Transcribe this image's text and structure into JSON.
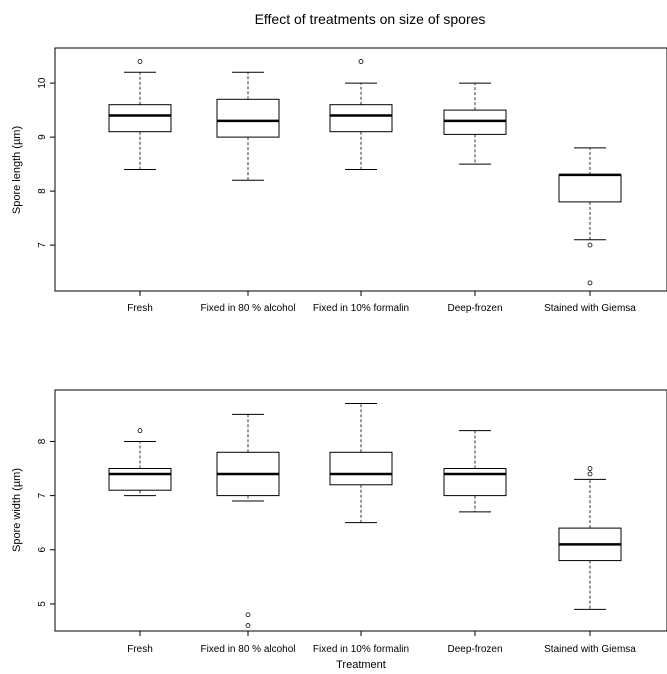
{
  "figure_title": "Effect of treatments on size of spores",
  "chart_data": [
    {
      "type": "box",
      "title": "Effect of treatments on size of spores",
      "xlabel": "",
      "ylabel": "Spore length (µm)",
      "ylim": [
        6.15,
        10.65
      ],
      "yticks": [
        7,
        8,
        9,
        10
      ],
      "grid": false,
      "categories": [
        "Fresh",
        "Fixed in 80 % alcohol",
        "Fixed in 10% formalin",
        "Deep-frozen",
        "Stained with Giemsa"
      ],
      "boxes": [
        {
          "whisker_low": 8.4,
          "q1": 9.1,
          "median": 9.4,
          "q3": 9.6,
          "whisker_high": 10.2,
          "outliers": [
            10.4
          ]
        },
        {
          "whisker_low": 8.2,
          "q1": 9.0,
          "median": 9.3,
          "q3": 9.7,
          "whisker_high": 10.2,
          "outliers": []
        },
        {
          "whisker_low": 8.4,
          "q1": 9.1,
          "median": 9.4,
          "q3": 9.6,
          "whisker_high": 10.0,
          "outliers": [
            10.4
          ]
        },
        {
          "whisker_low": 8.5,
          "q1": 9.05,
          "median": 9.3,
          "q3": 9.5,
          "whisker_high": 10.0,
          "outliers": []
        },
        {
          "whisker_low": 7.1,
          "q1": 7.8,
          "median": 8.3,
          "q3": 8.3,
          "whisker_high": 8.8,
          "outliers": [
            7.0,
            6.3
          ]
        }
      ]
    },
    {
      "type": "box",
      "title": "",
      "xlabel": "Treatment",
      "ylabel": "Spore width (µm)",
      "ylim": [
        4.5,
        8.95
      ],
      "yticks": [
        5,
        6,
        7,
        8
      ],
      "grid": false,
      "categories": [
        "Fresh",
        "Fixed in 80 % alcohol",
        "Fixed in 10% formalin",
        "Deep-frozen",
        "Stained with Giemsa"
      ],
      "boxes": [
        {
          "whisker_low": 7.0,
          "q1": 7.1,
          "median": 7.4,
          "q3": 7.5,
          "whisker_high": 8.0,
          "outliers": [
            8.2
          ]
        },
        {
          "whisker_low": 6.9,
          "q1": 7.0,
          "median": 7.4,
          "q3": 7.8,
          "whisker_high": 8.5,
          "outliers": [
            4.8,
            4.6
          ]
        },
        {
          "whisker_low": 6.5,
          "q1": 7.2,
          "median": 7.4,
          "q3": 7.8,
          "whisker_high": 8.7,
          "outliers": []
        },
        {
          "whisker_low": 6.7,
          "q1": 7.0,
          "median": 7.4,
          "q3": 7.5,
          "whisker_high": 8.2,
          "outliers": []
        },
        {
          "whisker_low": 4.9,
          "q1": 5.8,
          "median": 6.1,
          "q3": 6.4,
          "whisker_high": 7.3,
          "outliers": [
            7.5,
            7.4
          ]
        }
      ]
    }
  ]
}
